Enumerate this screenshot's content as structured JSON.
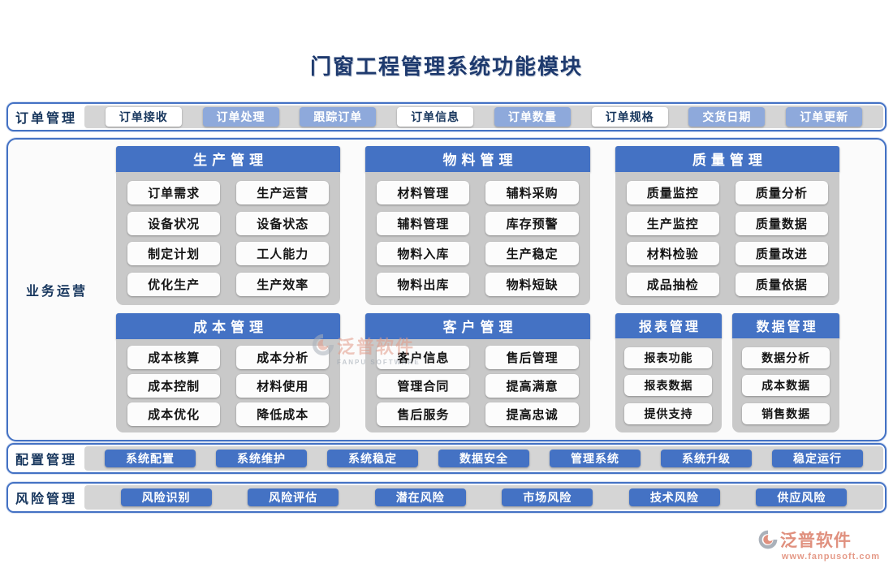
{
  "title": "门窗工程管理系统功能模块",
  "bands": {
    "order": {
      "label": "订单管理",
      "buttons": [
        {
          "label": "订单接收",
          "style": "white"
        },
        {
          "label": "订单处理",
          "style": "periwinkle"
        },
        {
          "label": "跟踪订单",
          "style": "periwinkle"
        },
        {
          "label": "订单信息",
          "style": "white"
        },
        {
          "label": "订单数量",
          "style": "periwinkle"
        },
        {
          "label": "订单规格",
          "style": "white"
        },
        {
          "label": "交货日期",
          "style": "periwinkle"
        },
        {
          "label": "订单更新",
          "style": "periwinkle"
        }
      ]
    },
    "config": {
      "label": "配置管理",
      "buttons": [
        {
          "label": "系统配置",
          "style": "blue"
        },
        {
          "label": "系统维护",
          "style": "blue"
        },
        {
          "label": "系统稳定",
          "style": "blue"
        },
        {
          "label": "数据安全",
          "style": "blue"
        },
        {
          "label": "管理系统",
          "style": "blue"
        },
        {
          "label": "系统升级",
          "style": "blue"
        },
        {
          "label": "稳定运行",
          "style": "blue"
        }
      ]
    },
    "risk": {
      "label": "风险管理",
      "buttons": [
        {
          "label": "风险识别",
          "style": "blue"
        },
        {
          "label": "风险评估",
          "style": "blue"
        },
        {
          "label": "潜在风险",
          "style": "blue"
        },
        {
          "label": "市场风险",
          "style": "blue"
        },
        {
          "label": "技术风险",
          "style": "blue"
        },
        {
          "label": "供应风险",
          "style": "blue"
        }
      ]
    }
  },
  "operations": {
    "label": "业务运营",
    "panels": [
      {
        "title": "生产管理",
        "columns": 2,
        "items": [
          "订单需求",
          "生产运营",
          "设备状况",
          "设备状态",
          "制定计划",
          "工人能力",
          "优化生产",
          "生产效率"
        ]
      },
      {
        "title": "物料管理",
        "columns": 2,
        "items": [
          "材料管理",
          "辅料采购",
          "辅料管理",
          "库存预警",
          "物料入库",
          "生产稳定",
          "物料出库",
          "物料短缺"
        ]
      },
      {
        "title": "质量管理",
        "columns": 2,
        "items": [
          "质量监控",
          "质量分析",
          "生产监控",
          "质量数据",
          "材料检验",
          "质量改进",
          "成品抽检",
          "质量依据"
        ]
      },
      {
        "title": "成本管理",
        "columns": 2,
        "items": [
          "成本核算",
          "成本分析",
          "成本控制",
          "材料使用",
          "成本优化",
          "降低成本"
        ]
      },
      {
        "title": "客户管理",
        "columns": 2,
        "items": [
          "客户信息",
          "售后管理",
          "管理合同",
          "提高满意",
          "售后服务",
          "提高忠诚"
        ]
      },
      {
        "title": "报表管理",
        "columns": 1,
        "items": [
          "报表功能",
          "报表数据",
          "提供支持"
        ]
      },
      {
        "title": "数据管理",
        "columns": 1,
        "items": [
          "数据分析",
          "成本数据",
          "销售数据"
        ]
      }
    ]
  },
  "watermark": {
    "name": "泛普软件",
    "subtext": "FANPU SOFTWARE"
  },
  "logo": {
    "name": "泛普软件",
    "url": "www.fanpusoft.com"
  },
  "colors": {
    "header_blue": "#4472c4",
    "periwinkle": "#8ea9db",
    "navy_text": "#17365d",
    "panel_gray": "#c9c9c9",
    "strip_gray": "#d5d5d5",
    "logo_salmon": "#e0907e"
  }
}
